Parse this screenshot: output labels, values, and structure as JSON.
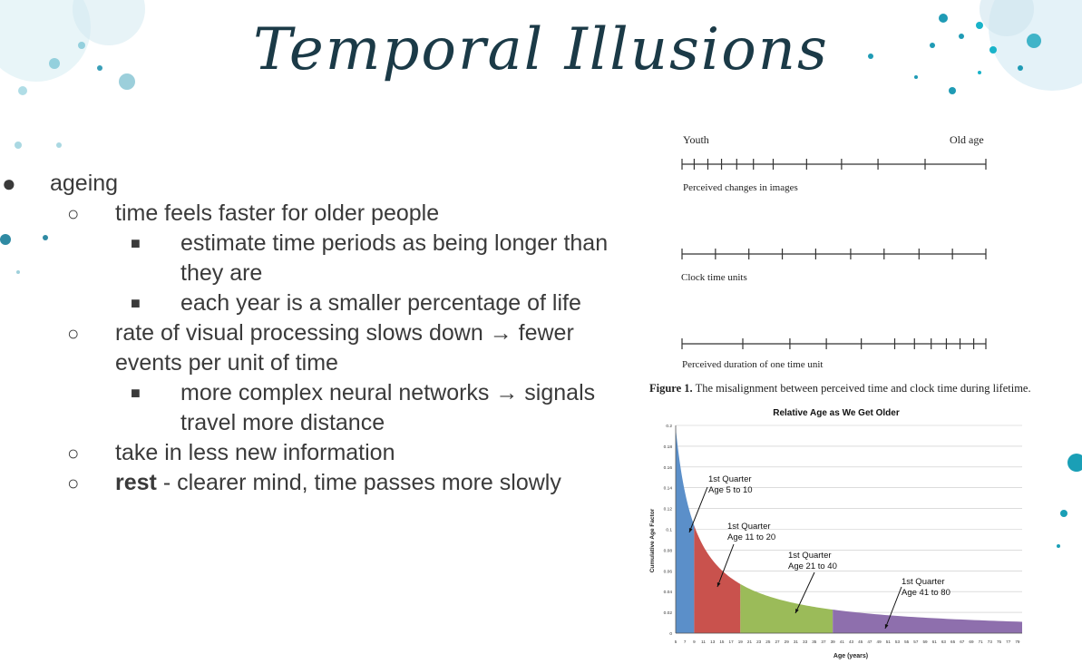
{
  "slide": {
    "title": "Temporal Illusions"
  },
  "bullets": {
    "b1": "ageing",
    "b2": "time feels faster for older people",
    "b3": "estimate time periods as being longer than they are",
    "b4": "each year is a smaller percentage of life",
    "b5": "rate of visual processing slows down → fewer events per unit of time",
    "b6": "more complex neural networks → signals travel more distance",
    "b7": "take in less new information",
    "b8_bold": "rest",
    "b8_rest": " - clearer mind, time passes more slowly"
  },
  "figure1": {
    "left_label": "Youth",
    "right_label": "Old age",
    "line1_label": "Perceived changes in images",
    "line2_label": "Clock time units",
    "line3_label": "Perceived duration of one time unit",
    "caption_bold": "Figure 1.",
    "caption_rest": " The misalignment between perceived time and clock time during lifetime."
  },
  "chart_data": {
    "type": "area",
    "title": "Relative Age as We Get Older",
    "xlabel": "Age (years)",
    "ylabel": "Cumulative Age Factor",
    "ylim": [
      0,
      0.2
    ],
    "yticks": [
      0,
      0.02,
      0.04,
      0.06,
      0.08,
      0.1,
      0.12,
      0.14,
      0.16,
      0.18,
      0.2
    ],
    "xlim": [
      5,
      80
    ],
    "xticks": [
      5,
      7,
      9,
      11,
      13,
      15,
      17,
      19,
      21,
      23,
      25,
      27,
      29,
      31,
      33,
      35,
      37,
      39,
      41,
      43,
      45,
      47,
      49,
      51,
      53,
      55,
      57,
      59,
      61,
      63,
      65,
      67,
      69,
      71,
      73,
      75,
      77,
      79
    ],
    "series": [
      {
        "range": [
          5,
          9
        ],
        "color": "#5b8fc9"
      },
      {
        "range": [
          9,
          19
        ],
        "color": "#c9524d"
      },
      {
        "range": [
          19,
          39
        ],
        "color": "#9bbb59"
      },
      {
        "range": [
          39,
          80
        ],
        "color": "#8e6fad"
      }
    ],
    "annotations": [
      {
        "line1": "1st Quarter",
        "line2": "Age 5 to 10"
      },
      {
        "line1": "1st Quarter",
        "line2": "Age 11 to 20"
      },
      {
        "line1": "1st Quarter",
        "line2": "Age 21 to 40"
      },
      {
        "line1": "1st Quarter",
        "line2": "Age 41 to 80"
      }
    ]
  }
}
